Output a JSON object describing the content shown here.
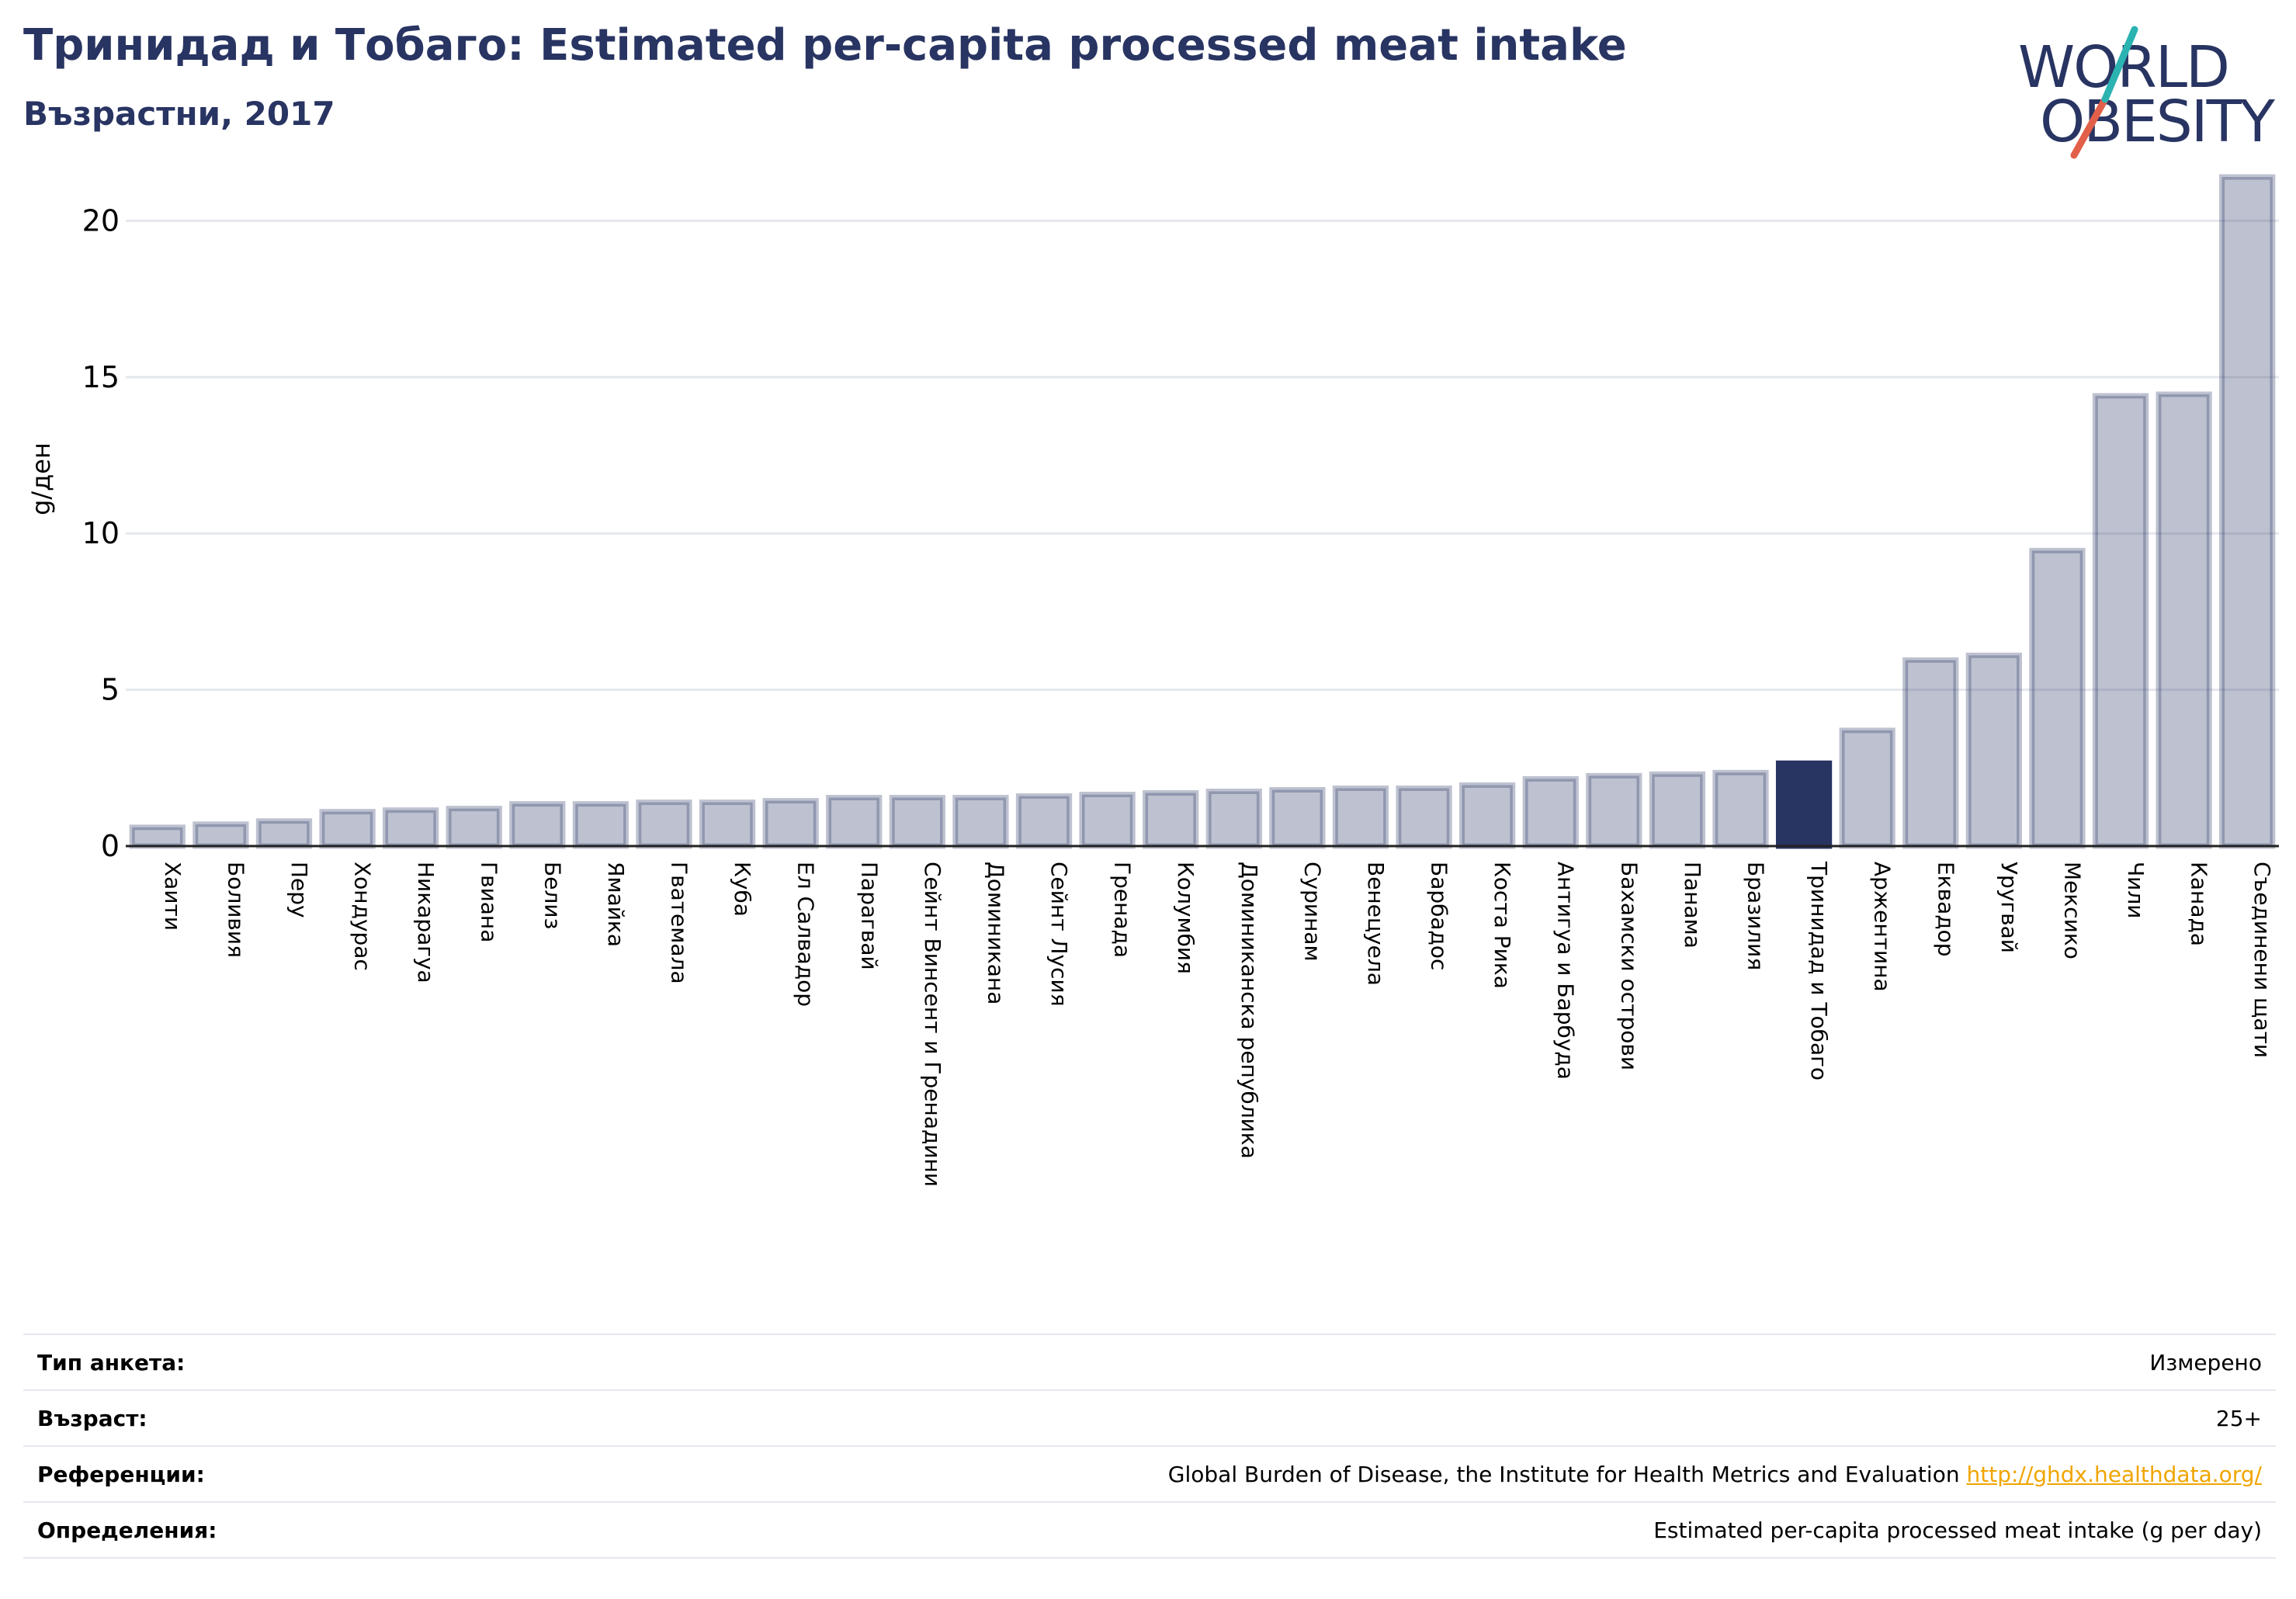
{
  "header": {
    "title": "Тринидад и Тобаго: Estimated per-capita processed meat intake",
    "subtitle": "Възрастни, 2017"
  },
  "logo": {
    "line1": "WORLD",
    "line2": "OBESITY",
    "accent_teal": "#2bb3b1",
    "accent_red": "#e2604a"
  },
  "colors": {
    "bar": "#283462",
    "bar_fill_opacity": 0.3,
    "highlight": "#283462",
    "grid": "#e5e7ee"
  },
  "chart_data": {
    "type": "bar",
    "ylabel": "g/ден",
    "ylim": [
      0,
      21.5
    ],
    "yticks": [
      0,
      5,
      10,
      15,
      20
    ],
    "grid": true,
    "highlight": "Тринидад и Тобаго",
    "categories": [
      "Хаити",
      "Боливия",
      "Перу",
      "Хондурас",
      "Никарагуа",
      "Гвиана",
      "Белиз",
      "Ямайка",
      "Гватемала",
      "Куба",
      "Ел Салвадор",
      "Парагвай",
      "Сейнт Винсент и Гренадини",
      "Доминикана",
      "Сейнт Лусия",
      "Гренада",
      "Колумбия",
      "Доминиканска република",
      "Суринам",
      "Венецуела",
      "Барбадос",
      "Коста Рика",
      "Антигуа и Барбуда",
      "Бахамски острови",
      "Панама",
      "Бразилия",
      "Тринидад и Тобаго",
      "Аржентина",
      "Еквадор",
      "Уругвай",
      "Мексико",
      "Чили",
      "Канада",
      "Съединени щати"
    ],
    "values": [
      0.6,
      0.7,
      0.8,
      1.1,
      1.15,
      1.2,
      1.35,
      1.35,
      1.4,
      1.4,
      1.45,
      1.55,
      1.55,
      1.55,
      1.6,
      1.65,
      1.7,
      1.75,
      1.8,
      1.85,
      1.85,
      1.95,
      2.15,
      2.25,
      2.3,
      2.35,
      2.65,
      3.7,
      5.95,
      6.1,
      9.45,
      14.4,
      14.45,
      21.4
    ]
  },
  "info": {
    "rows": [
      {
        "key": "Тип анкета:",
        "value": "Измерено"
      },
      {
        "key": "Възраст:",
        "value": "25+"
      },
      {
        "key": "Референции:",
        "value": "Global Burden of Disease, the Institute for Health Metrics and Evaluation",
        "link": "http://ghdx.healthdata.org/"
      },
      {
        "key": "Определения:",
        "value": "Estimated per-capita processed meat intake (g per day)"
      }
    ]
  }
}
